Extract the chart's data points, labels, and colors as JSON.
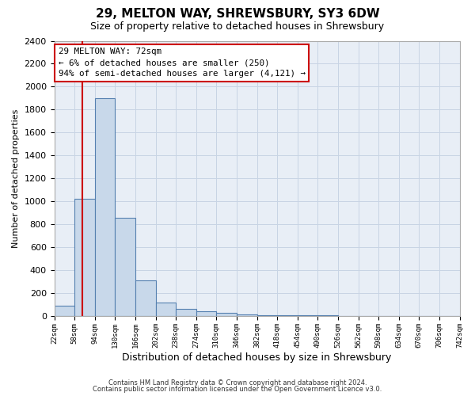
{
  "title": "29, MELTON WAY, SHREWSBURY, SY3 6DW",
  "subtitle": "Size of property relative to detached houses in Shrewsbury",
  "xlabel": "Distribution of detached houses by size in Shrewsbury",
  "ylabel": "Number of detached properties",
  "bin_edges": [
    22,
    58,
    94,
    130,
    166,
    202,
    238,
    274,
    310,
    346,
    382,
    418,
    454,
    490,
    526,
    562,
    598,
    634,
    670,
    706,
    742
  ],
  "bin_heights": [
    90,
    1020,
    1900,
    860,
    310,
    120,
    60,
    45,
    25,
    15,
    10,
    8,
    5,
    4,
    3,
    3,
    2,
    2,
    2,
    2
  ],
  "bar_facecolor": "#c8d8ea",
  "bar_edgecolor": "#5580b0",
  "property_size": 72,
  "red_line_color": "#cc0000",
  "annotation_line1": "29 MELTON WAY: 72sqm",
  "annotation_line2": "← 6% of detached houses are smaller (250)",
  "annotation_line3": "94% of semi-detached houses are larger (4,121) →",
  "annotation_box_color": "#ffffff",
  "annotation_box_edge": "#cc0000",
  "ylim": [
    0,
    2400
  ],
  "yticks": [
    0,
    200,
    400,
    600,
    800,
    1000,
    1200,
    1400,
    1600,
    1800,
    2000,
    2200,
    2400
  ],
  "footer_line1": "Contains HM Land Registry data © Crown copyright and database right 2024.",
  "footer_line2": "Contains public sector information licensed under the Open Government Licence v3.0.",
  "grid_color": "#c8d4e4",
  "bg_color": "#e8eef6",
  "title_fontsize": 11,
  "subtitle_fontsize": 9,
  "xlabel_fontsize": 9,
  "ylabel_fontsize": 8
}
